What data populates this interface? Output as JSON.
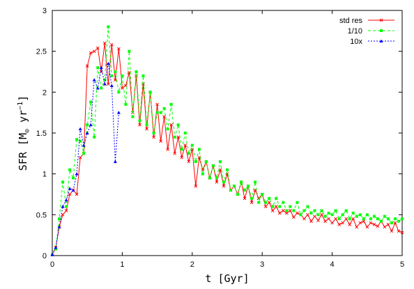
{
  "chart_data": {
    "type": "line",
    "xlabel": "t  [Gyr]",
    "ylabel_main": "SFR  [M",
    "ylabel_sub": "⊙",
    "ylabel_units": " yr",
    "ylabel_sup": "−1",
    "ylabel_close": "]",
    "xlim": [
      0,
      5
    ],
    "ylim": [
      0,
      3
    ],
    "x_ticks": [
      0,
      1,
      2,
      3,
      4,
      5
    ],
    "y_ticks": [
      0,
      0.5,
      1,
      1.5,
      2,
      2.5,
      3
    ],
    "x_tick_labels": [
      "0",
      "1",
      "2",
      "3",
      "4",
      "5"
    ],
    "y_tick_labels": [
      "0",
      "0.5",
      "1",
      "1.5",
      "2",
      "2.5",
      "3"
    ],
    "legend_position": "top-right",
    "grid": false,
    "series": [
      {
        "name": "std res",
        "color": "#ff0000",
        "marker": "cross",
        "dash": "none",
        "x": [
          0.0,
          0.05,
          0.1,
          0.15,
          0.2,
          0.25,
          0.3,
          0.35,
          0.4,
          0.45,
          0.5,
          0.55,
          0.6,
          0.65,
          0.7,
          0.75,
          0.8,
          0.85,
          0.9,
          0.95,
          1.0,
          1.05,
          1.1,
          1.15,
          1.2,
          1.25,
          1.3,
          1.35,
          1.4,
          1.45,
          1.5,
          1.55,
          1.6,
          1.65,
          1.7,
          1.75,
          1.8,
          1.85,
          1.9,
          1.95,
          2.0,
          2.05,
          2.1,
          2.15,
          2.2,
          2.25,
          2.3,
          2.35,
          2.4,
          2.45,
          2.5,
          2.55,
          2.6,
          2.65,
          2.7,
          2.75,
          2.8,
          2.85,
          2.9,
          2.95,
          3.0,
          3.05,
          3.1,
          3.15,
          3.2,
          3.25,
          3.3,
          3.35,
          3.4,
          3.45,
          3.5,
          3.55,
          3.6,
          3.65,
          3.7,
          3.75,
          3.8,
          3.85,
          3.9,
          3.95,
          4.0,
          4.05,
          4.1,
          4.15,
          4.2,
          4.25,
          4.3,
          4.35,
          4.4,
          4.45,
          4.5,
          4.55,
          4.6,
          4.65,
          4.7,
          4.75,
          4.8,
          4.85,
          4.9,
          4.95,
          5.0
        ],
        "values": [
          0.01,
          0.1,
          0.35,
          0.5,
          0.55,
          0.75,
          0.8,
          0.75,
          1.2,
          1.25,
          2.32,
          2.48,
          2.5,
          2.54,
          2.25,
          2.6,
          2.1,
          2.58,
          2.15,
          2.53,
          2.05,
          2.08,
          2.24,
          1.75,
          2.2,
          1.6,
          2.1,
          1.55,
          2.0,
          1.45,
          1.85,
          1.4,
          1.7,
          1.3,
          1.6,
          1.25,
          1.45,
          1.2,
          1.35,
          1.15,
          1.3,
          0.85,
          1.2,
          1.05,
          1.15,
          0.95,
          1.1,
          0.9,
          1.05,
          0.85,
          1.0,
          0.8,
          0.85,
          0.75,
          0.9,
          0.7,
          0.85,
          0.65,
          0.8,
          0.7,
          0.75,
          0.6,
          0.65,
          0.55,
          0.6,
          0.52,
          0.55,
          0.52,
          0.55,
          0.47,
          0.52,
          0.5,
          0.45,
          0.5,
          0.42,
          0.48,
          0.43,
          0.5,
          0.42,
          0.45,
          0.4,
          0.45,
          0.38,
          0.4,
          0.45,
          0.38,
          0.45,
          0.35,
          0.4,
          0.42,
          0.35,
          0.4,
          0.38,
          0.36,
          0.42,
          0.35,
          0.38,
          0.3,
          0.4,
          0.3,
          0.28
        ]
      },
      {
        "name": "1/10",
        "color": "#00ff00",
        "marker": "square",
        "dash": "4,3",
        "x": [
          0.0,
          0.05,
          0.1,
          0.15,
          0.2,
          0.25,
          0.3,
          0.35,
          0.4,
          0.45,
          0.5,
          0.55,
          0.6,
          0.65,
          0.7,
          0.75,
          0.8,
          0.85,
          0.9,
          0.95,
          1.0,
          1.05,
          1.1,
          1.15,
          1.2,
          1.25,
          1.3,
          1.35,
          1.4,
          1.45,
          1.5,
          1.55,
          1.6,
          1.65,
          1.7,
          1.75,
          1.8,
          1.85,
          1.9,
          1.95,
          2.0,
          2.05,
          2.1,
          2.15,
          2.2,
          2.25,
          2.3,
          2.35,
          2.4,
          2.45,
          2.5,
          2.55,
          2.6,
          2.65,
          2.7,
          2.75,
          2.8,
          2.85,
          2.9,
          2.95,
          3.0,
          3.05,
          3.1,
          3.15,
          3.2,
          3.25,
          3.3,
          3.35,
          3.4,
          3.45,
          3.5,
          3.55,
          3.6,
          3.65,
          3.7,
          3.75,
          3.8,
          3.85,
          3.9,
          3.95,
          4.0,
          4.05,
          4.1,
          4.15,
          4.2,
          4.25,
          4.3,
          4.35,
          4.4,
          4.45,
          4.5,
          4.55,
          4.6,
          4.65,
          4.7,
          4.75,
          4.8,
          4.85,
          4.9,
          4.95,
          5.0
        ],
        "values": [
          0.01,
          0.08,
          0.45,
          0.9,
          0.6,
          1.05,
          0.95,
          1.42,
          1.4,
          1.25,
          1.6,
          1.88,
          1.45,
          2.3,
          2.05,
          2.15,
          2.8,
          2.2,
          2.25,
          2.0,
          2.2,
          1.85,
          2.5,
          1.7,
          2.25,
          1.65,
          2.2,
          1.6,
          2.0,
          1.5,
          1.75,
          1.75,
          1.8,
          1.55,
          1.85,
          1.45,
          1.6,
          1.3,
          1.5,
          1.25,
          1.35,
          1.15,
          1.3,
          1.0,
          1.15,
          0.95,
          1.1,
          0.95,
          1.15,
          0.9,
          1.05,
          0.8,
          0.85,
          0.75,
          0.9,
          0.8,
          0.85,
          0.7,
          0.9,
          0.65,
          0.75,
          0.65,
          0.7,
          0.6,
          0.7,
          0.6,
          0.65,
          0.55,
          0.6,
          0.55,
          0.65,
          0.5,
          0.55,
          0.6,
          0.52,
          0.55,
          0.5,
          0.55,
          0.48,
          0.52,
          0.5,
          0.55,
          0.45,
          0.5,
          0.55,
          0.45,
          0.52,
          0.48,
          0.5,
          0.45,
          0.5,
          0.45,
          0.48,
          0.45,
          0.42,
          0.48,
          0.45,
          0.4,
          0.45,
          0.42,
          0.45
        ]
      },
      {
        "name": "10x",
        "color": "#0000ff",
        "marker": "triangle",
        "dash": "2,2",
        "x": [
          0.0,
          0.05,
          0.1,
          0.15,
          0.2,
          0.25,
          0.3,
          0.35,
          0.4,
          0.45,
          0.5,
          0.55,
          0.6,
          0.65,
          0.7,
          0.75,
          0.8,
          0.85,
          0.9,
          0.95
        ],
        "values": [
          0.01,
          0.1,
          0.35,
          0.6,
          0.68,
          0.82,
          0.8,
          1.0,
          1.55,
          1.35,
          1.5,
          1.6,
          2.15,
          2.05,
          2.3,
          2.1,
          2.35,
          2.08,
          1.15,
          1.75
        ]
      }
    ]
  }
}
